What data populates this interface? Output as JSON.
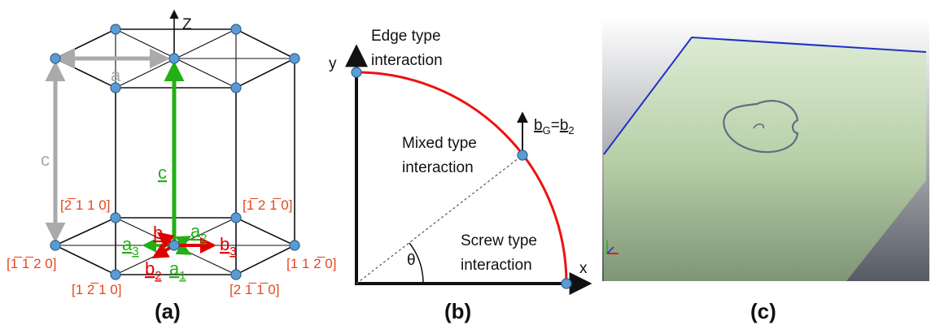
{
  "panel_a": {
    "caption": "(a)",
    "axis_z": "Z",
    "lattice_a": "a",
    "lattice_c": "c",
    "vec_c": "c",
    "vec_a1": "a",
    "vec_a1_sub": "1",
    "vec_a2": "a",
    "vec_a2_sub": "2",
    "vec_a3": "a",
    "vec_a3_sub": "3",
    "vec_b1": "b",
    "vec_b1_sub": "1",
    "vec_b2": "b",
    "vec_b2_sub": "2",
    "vec_b3": "b",
    "vec_b3_sub": "3",
    "dir_upper_left": "[2̅ 1 1 0]",
    "dir_upper_right": "[1̅ 2 1̅ 0]",
    "dir_left": "[1̅ 1̅ 2 0]",
    "dir_right": "[1 1 2̅ 0]",
    "dir_bottom_left": "[1 2̅ 1 0]",
    "dir_bottom_right": "[2 1̅ 1̅ 0]"
  },
  "panel_b": {
    "caption": "(b)",
    "axis_y": "y",
    "axis_x": "x",
    "theta": "θ",
    "edge_line1": "Edge type",
    "edge_line2": "interaction",
    "mixed_line1": "Mixed type",
    "mixed_line2": "interaction",
    "screw_line1": "Screw type",
    "screw_line2": "interaction",
    "bg_b": "b",
    "bg_sub_g": "G",
    "bg_eq": "=",
    "bg_b2": "b",
    "bg_sub_2": "2"
  },
  "panel_c": {
    "caption": "(c)"
  },
  "colors": {
    "red": "#e00000",
    "green": "#22b014",
    "grey": "#aaaaaa",
    "node": "#5b9bd5",
    "orange_label": "#e8471c",
    "curve": "#ee1111",
    "slab_edge": "#2030c8"
  }
}
